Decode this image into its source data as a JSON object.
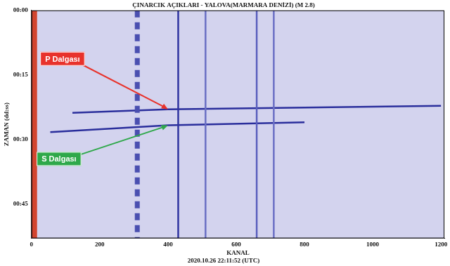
{
  "chart_data": {
    "type": "line",
    "title": "ÇINARCIK AÇIKLARI - YALOVA(MARMARA DENİZİ) (M 2.8)",
    "subtitle": "2020.10.26 22:11:52 (UTC)",
    "x_label": "KANAL",
    "y_label": "ZAMAN (dd:ss)",
    "xlim": [
      0,
      1210
    ],
    "xticks": [
      0,
      200,
      400,
      600,
      800,
      1000,
      1200
    ],
    "ylim": [
      0,
      53
    ],
    "yticks": [
      {
        "value": 0,
        "label": "00:00"
      },
      {
        "value": 15,
        "label": "00:15"
      },
      {
        "value": 30,
        "label": "00:30"
      },
      {
        "value": 45,
        "label": "00:45"
      }
    ],
    "grid": false,
    "series": [
      {
        "color": "#d2452f",
        "line_style": "band",
        "x": [
          6,
          6
        ],
        "values": [
          0,
          53
        ]
      },
      {
        "color": "#4a4fb0",
        "line_style": "dashed",
        "x": [
          310,
          310
        ],
        "values": [
          0,
          53
        ]
      },
      {
        "color": "#2f33a0",
        "line_style": "solid",
        "x": [
          430,
          430
        ],
        "values": [
          0,
          53
        ]
      },
      {
        "color": "#6a6fc4",
        "line_style": "solid",
        "x": [
          510,
          510
        ],
        "values": [
          0,
          53
        ]
      },
      {
        "color": "#5a5fbe",
        "line_style": "solid",
        "x": [
          660,
          660
        ],
        "values": [
          0,
          53
        ]
      },
      {
        "color": "#6a6fc4",
        "line_style": "solid",
        "x": [
          710,
          710
        ],
        "values": [
          0,
          53
        ]
      },
      {
        "color": "#2a2e9c",
        "line_style": "solid",
        "x": [
          120,
          400,
          1200
        ],
        "values": [
          23.8,
          23.0,
          22.2
        ]
      },
      {
        "color": "#2a2e9c",
        "line_style": "solid",
        "x": [
          55,
          400,
          800
        ],
        "values": [
          28.3,
          26.7,
          26.0
        ]
      }
    ],
    "annotations": [
      {
        "text": "P Dalgası",
        "color": "#e8322b",
        "x": 400,
        "y": 23.0
      },
      {
        "text": "S Dalgası",
        "color": "#2ea84a",
        "x": 400,
        "y": 26.7
      }
    ]
  }
}
